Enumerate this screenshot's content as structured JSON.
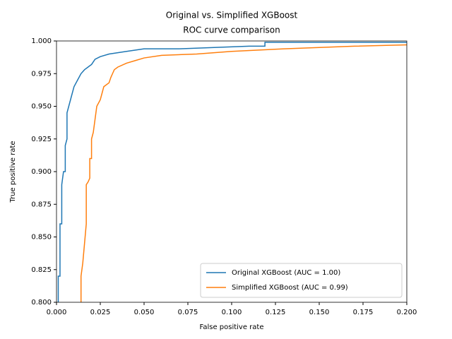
{
  "chart_data": {
    "type": "line",
    "title": "Original vs. Simplified XGBoost",
    "subtitle": "ROC curve comparison",
    "x_label": "False positive rate",
    "y_label": "True positive rate",
    "xlim": [
      0,
      0.2
    ],
    "ylim": [
      0.8,
      1.0
    ],
    "xticks": [
      {
        "value": 0,
        "label": "0.000"
      },
      {
        "value": 0.025,
        "label": "0.025"
      },
      {
        "value": 0.05,
        "label": "0.050"
      },
      {
        "value": 0.075,
        "label": "0.075"
      },
      {
        "value": 0.1,
        "label": "0.100"
      },
      {
        "value": 0.125,
        "label": "0.125"
      },
      {
        "value": 0.15,
        "label": "0.150"
      },
      {
        "value": 0.175,
        "label": "0.175"
      },
      {
        "value": 0.2,
        "label": "0.200"
      }
    ],
    "yticks": [
      {
        "value": 0.8,
        "label": "0.800"
      },
      {
        "value": 0.825,
        "label": "0.825"
      },
      {
        "value": 0.85,
        "label": "0.850"
      },
      {
        "value": 0.875,
        "label": "0.875"
      },
      {
        "value": 0.9,
        "label": "0.900"
      },
      {
        "value": 0.925,
        "label": "0.925"
      },
      {
        "value": 0.95,
        "label": "0.950"
      },
      {
        "value": 0.975,
        "label": "0.975"
      },
      {
        "value": 1.0,
        "label": "1.000"
      }
    ],
    "grid": false,
    "legend": "lower right",
    "series": [
      {
        "name": "Original XGBoost (AUC = 1.00)",
        "color": "#1f77b4",
        "x": [
          0.001,
          0.001,
          0.002,
          0.002,
          0.003,
          0.003,
          0.004,
          0.005,
          0.005,
          0.006,
          0.006,
          0.007,
          0.008,
          0.009,
          0.01,
          0.012,
          0.014,
          0.016,
          0.018,
          0.02,
          0.022,
          0.025,
          0.03,
          0.04,
          0.05,
          0.07,
          0.09,
          0.11,
          0.119,
          0.119,
          0.2
        ],
        "values": [
          0.8,
          0.82,
          0.82,
          0.86,
          0.86,
          0.89,
          0.9,
          0.9,
          0.92,
          0.925,
          0.945,
          0.95,
          0.955,
          0.96,
          0.965,
          0.97,
          0.975,
          0.978,
          0.98,
          0.982,
          0.986,
          0.988,
          0.99,
          0.992,
          0.994,
          0.994,
          0.995,
          0.996,
          0.996,
          0.999,
          0.999
        ]
      },
      {
        "name": "Simplified XGBoost (AUC = 0.99)",
        "color": "#ff7f0e",
        "x": [
          0.014,
          0.014,
          0.015,
          0.016,
          0.017,
          0.017,
          0.018,
          0.019,
          0.019,
          0.02,
          0.02,
          0.021,
          0.022,
          0.023,
          0.025,
          0.026,
          0.027,
          0.03,
          0.031,
          0.032,
          0.033,
          0.035,
          0.04,
          0.045,
          0.05,
          0.06,
          0.08,
          0.1,
          0.13,
          0.15,
          0.17,
          0.2
        ],
        "values": [
          0.8,
          0.82,
          0.83,
          0.845,
          0.86,
          0.89,
          0.892,
          0.895,
          0.91,
          0.91,
          0.925,
          0.93,
          0.94,
          0.95,
          0.955,
          0.96,
          0.965,
          0.968,
          0.972,
          0.975,
          0.978,
          0.98,
          0.983,
          0.985,
          0.987,
          0.989,
          0.99,
          0.992,
          0.994,
          0.995,
          0.996,
          0.997
        ]
      }
    ]
  }
}
